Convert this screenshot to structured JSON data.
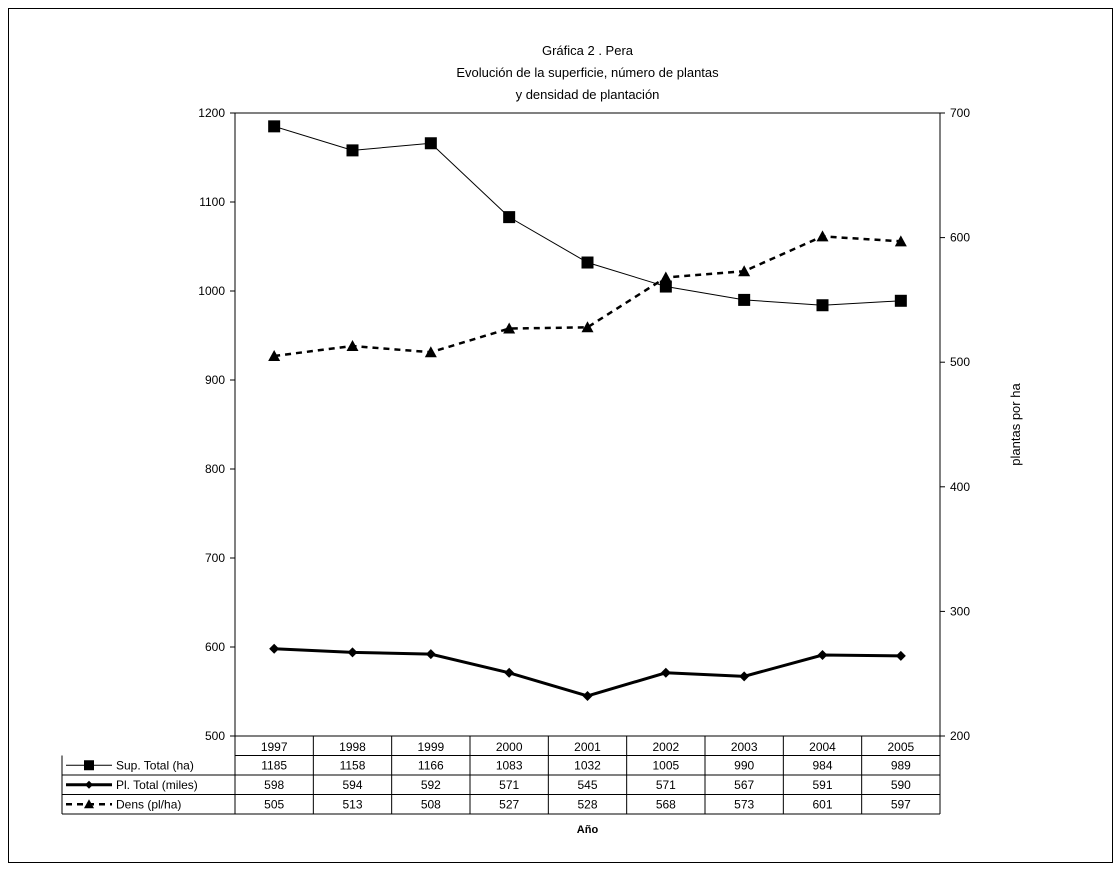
{
  "chart_data": {
    "type": "line",
    "title": [
      "Gráfica 2 . Pera",
      "Evolución de la superficie, número de plantas",
      "y densidad de plantación"
    ],
    "xlabel": "Año",
    "ylabel_right": "plantas por ha",
    "categories": [
      "1997",
      "1998",
      "1999",
      "2000",
      "2001",
      "2002",
      "2003",
      "2004",
      "2005"
    ],
    "y_left": {
      "min": 500,
      "max": 1200,
      "ticks": [
        "500",
        "600",
        "700",
        "800",
        "900",
        "1000",
        "1100",
        "1200"
      ]
    },
    "y_right": {
      "min": 200,
      "max": 700,
      "ticks": [
        "200",
        "300",
        "400",
        "500",
        "600",
        "700"
      ]
    },
    "series": [
      {
        "name": "Sup. Total (ha)",
        "axis": "left",
        "marker": "square",
        "style": "thin",
        "values": [
          1185,
          1158,
          1166,
          1083,
          1032,
          1005,
          990,
          984,
          989
        ]
      },
      {
        "name": "Pl. Total (miles)",
        "axis": "left",
        "marker": "diamond",
        "style": "thick",
        "values": [
          598,
          594,
          592,
          571,
          545,
          571,
          567,
          591,
          590
        ]
      },
      {
        "name": "Dens (pl/ha)",
        "axis": "right",
        "marker": "triangle",
        "style": "dashed",
        "values": [
          505,
          513,
          508,
          527,
          528,
          568,
          573,
          601,
          597
        ]
      }
    ],
    "grid": false,
    "legend": "data-table"
  }
}
